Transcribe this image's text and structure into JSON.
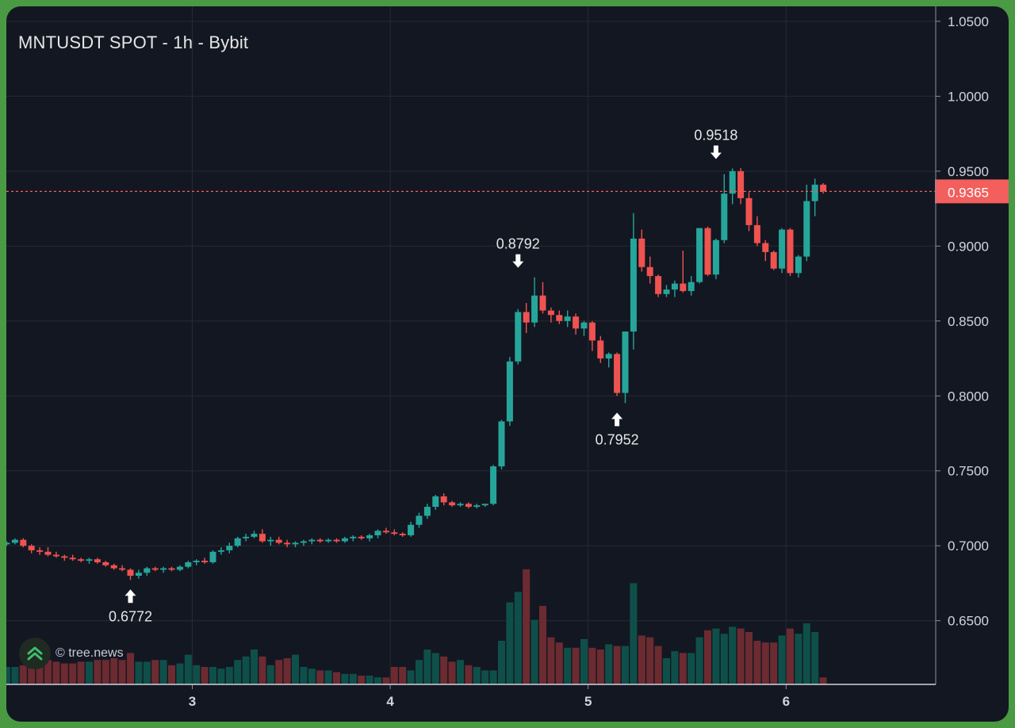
{
  "header": {
    "title": "MNTUSDT SPOT - 1h - Bybit"
  },
  "watermark": {
    "text": "© tree.news",
    "icon": "tree-logo-icon"
  },
  "colors": {
    "background": "#131722",
    "up": "#26a69a",
    "down": "#ef5350",
    "volume_up": "#0f4f4a",
    "volume_down": "#6b2b31",
    "grid": "#252a36",
    "price_line": "#f25f5c",
    "outer_frame": "#4a9a44"
  },
  "chart_data": {
    "type": "candlestick",
    "title": "MNTUSDT SPOT - 1h - Bybit",
    "x_ticks": [
      "3",
      "4",
      "5",
      "6"
    ],
    "y_ticks": [
      "1.0500",
      "1.0000",
      "0.9500",
      "0.9000",
      "0.8500",
      "0.8000",
      "0.7500",
      "0.7000",
      "0.6500"
    ],
    "ylim": [
      0.6075,
      1.06
    ],
    "grid": true,
    "last_price": 0.9365,
    "last_price_label": "0.9365",
    "annotations": [
      {
        "label": "0.6772",
        "candle": 15,
        "value": 0.6772,
        "direction": "up"
      },
      {
        "label": "0.8792",
        "candle": 62,
        "value": 0.8792,
        "direction": "down"
      },
      {
        "label": "0.7952",
        "candle": 74,
        "value": 0.7952,
        "direction": "up"
      },
      {
        "label": "0.9518",
        "candle": 86,
        "value": 0.9518,
        "direction": "down"
      }
    ],
    "candles": [
      [
        0.701,
        0.703,
        0.7,
        0.702
      ],
      [
        0.702,
        0.705,
        0.701,
        0.704
      ],
      [
        0.704,
        0.705,
        0.699,
        0.7
      ],
      [
        0.7,
        0.701,
        0.695,
        0.697
      ],
      [
        0.697,
        0.699,
        0.694,
        0.696
      ],
      [
        0.696,
        0.699,
        0.693,
        0.694
      ],
      [
        0.694,
        0.696,
        0.692,
        0.693
      ],
      [
        0.693,
        0.694,
        0.69,
        0.692
      ],
      [
        0.692,
        0.694,
        0.69,
        0.691
      ],
      [
        0.691,
        0.692,
        0.689,
        0.69
      ],
      [
        0.69,
        0.692,
        0.688,
        0.691
      ],
      [
        0.691,
        0.692,
        0.688,
        0.689
      ],
      [
        0.689,
        0.69,
        0.686,
        0.687
      ],
      [
        0.687,
        0.688,
        0.684,
        0.685
      ],
      [
        0.685,
        0.687,
        0.683,
        0.684
      ],
      [
        0.684,
        0.685,
        0.6772,
        0.68
      ],
      [
        0.68,
        0.684,
        0.678,
        0.682
      ],
      [
        0.682,
        0.686,
        0.68,
        0.685
      ],
      [
        0.685,
        0.686,
        0.683,
        0.684
      ],
      [
        0.684,
        0.686,
        0.682,
        0.685
      ],
      [
        0.685,
        0.686,
        0.683,
        0.684
      ],
      [
        0.684,
        0.687,
        0.683,
        0.686
      ],
      [
        0.686,
        0.69,
        0.685,
        0.689
      ],
      [
        0.689,
        0.691,
        0.687,
        0.69
      ],
      [
        0.69,
        0.692,
        0.688,
        0.689
      ],
      [
        0.689,
        0.697,
        0.688,
        0.696
      ],
      [
        0.696,
        0.699,
        0.694,
        0.697
      ],
      [
        0.697,
        0.702,
        0.695,
        0.7
      ],
      [
        0.7,
        0.706,
        0.699,
        0.705
      ],
      [
        0.705,
        0.708,
        0.703,
        0.706
      ],
      [
        0.706,
        0.71,
        0.705,
        0.708
      ],
      [
        0.708,
        0.711,
        0.702,
        0.703
      ],
      [
        0.703,
        0.706,
        0.7,
        0.704
      ],
      [
        0.704,
        0.706,
        0.701,
        0.702
      ],
      [
        0.702,
        0.704,
        0.699,
        0.701
      ],
      [
        0.701,
        0.703,
        0.699,
        0.702
      ],
      [
        0.702,
        0.704,
        0.7,
        0.703
      ],
      [
        0.703,
        0.705,
        0.701,
        0.704
      ],
      [
        0.704,
        0.705,
        0.702,
        0.703
      ],
      [
        0.703,
        0.705,
        0.702,
        0.704
      ],
      [
        0.704,
        0.705,
        0.702,
        0.703
      ],
      [
        0.703,
        0.706,
        0.702,
        0.705
      ],
      [
        0.705,
        0.707,
        0.703,
        0.706
      ],
      [
        0.706,
        0.707,
        0.704,
        0.705
      ],
      [
        0.705,
        0.708,
        0.703,
        0.707
      ],
      [
        0.707,
        0.711,
        0.705,
        0.71
      ],
      [
        0.71,
        0.712,
        0.708,
        0.709
      ],
      [
        0.709,
        0.711,
        0.707,
        0.708
      ],
      [
        0.708,
        0.709,
        0.706,
        0.707
      ],
      [
        0.707,
        0.716,
        0.706,
        0.714
      ],
      [
        0.714,
        0.722,
        0.712,
        0.72
      ],
      [
        0.72,
        0.728,
        0.718,
        0.726
      ],
      [
        0.726,
        0.734,
        0.724,
        0.733
      ],
      [
        0.733,
        0.735,
        0.727,
        0.729
      ],
      [
        0.729,
        0.73,
        0.726,
        0.727
      ],
      [
        0.727,
        0.729,
        0.726,
        0.728
      ],
      [
        0.728,
        0.729,
        0.725,
        0.726
      ],
      [
        0.726,
        0.728,
        0.725,
        0.727
      ],
      [
        0.727,
        0.728,
        0.726,
        0.728
      ],
      [
        0.728,
        0.754,
        0.727,
        0.753
      ],
      [
        0.753,
        0.784,
        0.751,
        0.783
      ],
      [
        0.783,
        0.826,
        0.78,
        0.823
      ],
      [
        0.823,
        0.858,
        0.821,
        0.856
      ],
      [
        0.856,
        0.862,
        0.842,
        0.849
      ],
      [
        0.849,
        0.8792,
        0.846,
        0.867
      ],
      [
        0.867,
        0.876,
        0.855,
        0.857
      ],
      [
        0.857,
        0.859,
        0.849,
        0.854
      ],
      [
        0.854,
        0.857,
        0.848,
        0.85
      ],
      [
        0.85,
        0.857,
        0.846,
        0.853
      ],
      [
        0.853,
        0.855,
        0.841,
        0.845
      ],
      [
        0.845,
        0.85,
        0.84,
        0.849
      ],
      [
        0.849,
        0.85,
        0.83,
        0.837
      ],
      [
        0.837,
        0.84,
        0.822,
        0.825
      ],
      [
        0.825,
        0.829,
        0.819,
        0.828
      ],
      [
        0.828,
        0.829,
        0.8,
        0.802
      ],
      [
        0.802,
        0.843,
        0.7952,
        0.843
      ],
      [
        0.843,
        0.922,
        0.831,
        0.905
      ],
      [
        0.905,
        0.911,
        0.883,
        0.886
      ],
      [
        0.886,
        0.893,
        0.875,
        0.88
      ],
      [
        0.88,
        0.881,
        0.866,
        0.868
      ],
      [
        0.868,
        0.874,
        0.866,
        0.871
      ],
      [
        0.871,
        0.877,
        0.866,
        0.875
      ],
      [
        0.875,
        0.897,
        0.869,
        0.87
      ],
      [
        0.87,
        0.88,
        0.867,
        0.876
      ],
      [
        0.876,
        0.912,
        0.875,
        0.912
      ],
      [
        0.912,
        0.913,
        0.88,
        0.881
      ],
      [
        0.881,
        0.905,
        0.878,
        0.904
      ],
      [
        0.904,
        0.948,
        0.902,
        0.935
      ],
      [
        0.935,
        0.9518,
        0.928,
        0.95
      ],
      [
        0.95,
        0.952,
        0.928,
        0.932
      ],
      [
        0.932,
        0.936,
        0.91,
        0.914
      ],
      [
        0.914,
        0.92,
        0.9,
        0.902
      ],
      [
        0.902,
        0.904,
        0.89,
        0.896
      ],
      [
        0.896,
        0.897,
        0.884,
        0.885
      ],
      [
        0.885,
        0.912,
        0.882,
        0.911
      ],
      [
        0.911,
        0.912,
        0.88,
        0.882
      ],
      [
        0.882,
        0.894,
        0.879,
        0.893
      ],
      [
        0.893,
        0.941,
        0.89,
        0.93
      ],
      [
        0.93,
        0.945,
        0.92,
        0.941
      ],
      [
        0.941,
        0.942,
        0.935,
        0.9365
      ]
    ],
    "volume": [
      0.1,
      0.1,
      0.11,
      0.1,
      0.12,
      0.14,
      0.13,
      0.12,
      0.12,
      0.13,
      0.13,
      0.14,
      0.14,
      0.15,
      0.14,
      0.18,
      0.13,
      0.13,
      0.14,
      0.14,
      0.11,
      0.12,
      0.17,
      0.11,
      0.1,
      0.1,
      0.09,
      0.1,
      0.14,
      0.16,
      0.2,
      0.16,
      0.11,
      0.14,
      0.15,
      0.17,
      0.1,
      0.09,
      0.08,
      0.08,
      0.07,
      0.06,
      0.06,
      0.05,
      0.05,
      0.04,
      0.04,
      0.1,
      0.1,
      0.08,
      0.14,
      0.2,
      0.18,
      0.16,
      0.13,
      0.14,
      0.11,
      0.1,
      0.08,
      0.08,
      0.25,
      0.47,
      0.53,
      0.66,
      0.37,
      0.45,
      0.27,
      0.24,
      0.21,
      0.21,
      0.26,
      0.21,
      0.2,
      0.23,
      0.22,
      0.22,
      0.58,
      0.28,
      0.27,
      0.22,
      0.15,
      0.19,
      0.18,
      0.18,
      0.27,
      0.31,
      0.32,
      0.29,
      0.33,
      0.32,
      0.3,
      0.25,
      0.24,
      0.24,
      0.28,
      0.32,
      0.29,
      0.35,
      0.3,
      0.04
    ]
  }
}
